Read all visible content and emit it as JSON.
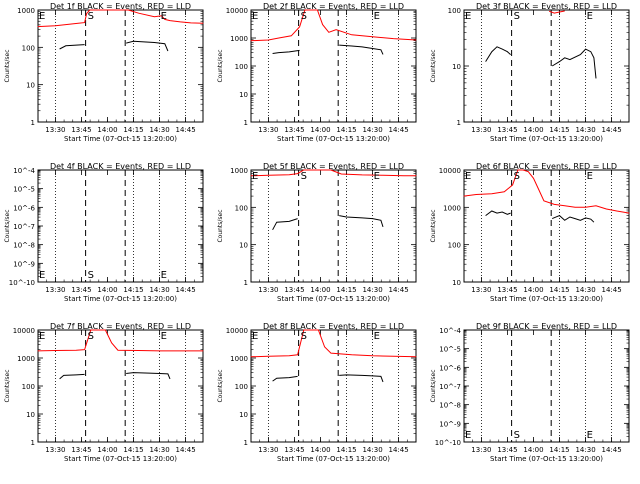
{
  "chart_data": [
    {
      "type": "line",
      "title": "Det 1f BLACK = Events, RED = LLD",
      "xlabel": "Start Time (07-Oct-15 13:20:00)",
      "ylabel": "Counts/sec",
      "yscale": "log",
      "ylim": [
        1,
        1000
      ],
      "ytick_labels": [
        "1",
        "10",
        "100",
        "1000"
      ],
      "xlim": [
        13.333,
        14.917
      ],
      "xtick_labels": [
        "13:30",
        "13:45",
        "14:00",
        "14:15",
        "14:30",
        "14:45"
      ],
      "markers": {
        "S_label": "S",
        "E_label": "E"
      },
      "series": [
        {
          "color": "#ff0000",
          "x": [
            13.33,
            13.5,
            13.72,
            13.78,
            13.8,
            13.83,
            13.9,
            14.0,
            14.1,
            14.2,
            14.3,
            14.45,
            14.52,
            14.55,
            14.6,
            14.7,
            14.8,
            14.92
          ],
          "y": [
            360,
            380,
            440,
            460,
            800,
            1000,
            1000,
            1000,
            1000,
            1000,
            820,
            660,
            700,
            560,
            520,
            480,
            450,
            440
          ]
        },
        {
          "color": "#000000",
          "x": [
            13.54,
            13.6,
            13.7,
            13.78,
            14.18,
            14.25,
            14.35,
            14.45,
            14.55,
            14.58
          ],
          "y": [
            90,
            110,
            115,
            118,
            130,
            145,
            140,
            135,
            125,
            80
          ]
        }
      ]
    },
    {
      "type": "line",
      "title": "Det 2f BLACK = Events, RED = LLD",
      "xlabel": "Start Time (07-Oct-15 13:20:00)",
      "ylabel": "Counts/sec",
      "yscale": "log",
      "ylim": [
        1,
        10000
      ],
      "ytick_labels": [
        "1",
        "10",
        "100",
        "1000",
        "10000"
      ],
      "xlim": [
        13.333,
        14.917
      ],
      "xtick_labels": [
        "13:30",
        "13:45",
        "14:00",
        "14:15",
        "14:30",
        "14:45"
      ],
      "markers": {
        "S_label": "S",
        "E_label": "E"
      },
      "series": [
        {
          "color": "#ff0000",
          "x": [
            13.33,
            13.5,
            13.6,
            13.72,
            13.8,
            13.85,
            13.9,
            13.97,
            14.02,
            14.08,
            14.15,
            14.3,
            14.5,
            14.7,
            14.92
          ],
          "y": [
            800,
            850,
            1000,
            1200,
            2500,
            10000,
            10000,
            10000,
            3000,
            1600,
            2000,
            1300,
            1100,
            950,
            850
          ]
        },
        {
          "color": "#000000",
          "x": [
            13.54,
            13.6,
            13.7,
            13.8,
            14.18,
            14.3,
            14.4,
            14.5,
            14.58,
            14.6
          ],
          "y": [
            280,
            300,
            320,
            360,
            560,
            520,
            480,
            420,
            380,
            260
          ]
        }
      ]
    },
    {
      "type": "line",
      "title": "Det 3f BLACK = Events, RED = LLD",
      "xlabel": "Start Time (07-Oct-15 13:20:00)",
      "ylabel": "Counts/sec",
      "yscale": "log",
      "ylim": [
        1,
        100
      ],
      "ytick_labels": [
        "1",
        "10",
        "100"
      ],
      "xlim": [
        13.333,
        14.917
      ],
      "xtick_labels": [
        "13:30",
        "13:45",
        "14:00",
        "14:15",
        "14:30",
        "14:45"
      ],
      "markers": {
        "S_label": "S",
        "E_label": "E"
      },
      "series": [
        {
          "color": "#ff0000",
          "x": [
            14.15,
            14.2,
            14.25,
            14.3
          ],
          "y": [
            95,
            88,
            92,
            96
          ]
        },
        {
          "color": "#000000",
          "x": [
            13.54,
            13.6,
            13.65,
            13.7,
            13.75,
            13.78,
            14.18,
            14.25,
            14.3,
            14.35,
            14.45,
            14.5,
            14.55,
            14.58,
            14.6
          ],
          "y": [
            12,
            18,
            22,
            20,
            18,
            16,
            10,
            12,
            14,
            13,
            16,
            20,
            18,
            14,
            6
          ]
        }
      ]
    },
    {
      "type": "line",
      "title": "Det 4f BLACK = Events, RED = LLD",
      "xlabel": "Start Time (07-Oct-15 13:20:00)",
      "ylabel": "Counts/sec",
      "yscale": "log",
      "ylim": [
        1e-10,
        0.0001
      ],
      "ytick_labels": [
        "10^-10",
        "10^-9",
        "10^-8",
        "10^-7",
        "10^-6",
        "10^-5",
        "10^-4"
      ],
      "xlim": [
        13.333,
        14.917
      ],
      "xtick_labels": [
        "13:30",
        "13:45",
        "14:00",
        "14:15",
        "14:30",
        "14:45"
      ],
      "markers": {
        "S_label": "S",
        "E_label": "E"
      },
      "series": []
    },
    {
      "type": "line",
      "title": "Det 5f BLACK = Events, RED = LLD",
      "xlabel": "Start Time (07-Oct-15 13:20:00)",
      "ylabel": "Counts/sec",
      "yscale": "log",
      "ylim": [
        1,
        1000
      ],
      "ytick_labels": [
        "1",
        "10",
        "100",
        "1000"
      ],
      "xlim": [
        13.333,
        14.917
      ],
      "xtick_labels": [
        "13:30",
        "13:45",
        "14:00",
        "14:15",
        "14:30",
        "14:45"
      ],
      "markers": {
        "S_label": "S",
        "E_label": "E"
      },
      "series": [
        {
          "color": "#ff0000",
          "x": [
            13.33,
            13.5,
            13.7,
            13.78,
            13.84,
            13.9,
            14.0,
            14.1,
            14.2,
            14.4,
            14.6,
            14.8,
            14.92
          ],
          "y": [
            700,
            720,
            750,
            800,
            1000,
            1000,
            1000,
            1000,
            780,
            740,
            720,
            700,
            700
          ]
        },
        {
          "color": "#000000",
          "x": [
            13.54,
            13.58,
            13.7,
            13.78,
            14.18,
            14.25,
            14.4,
            14.5,
            14.58,
            14.6
          ],
          "y": [
            25,
            40,
            42,
            50,
            60,
            55,
            52,
            50,
            45,
            30
          ]
        }
      ]
    },
    {
      "type": "line",
      "title": "Det 6f BLACK = Events, RED = LLD",
      "xlabel": "Start Time (07-Oct-15 13:20:00)",
      "ylabel": "Counts/sec",
      "yscale": "log",
      "ylim": [
        10,
        10000
      ],
      "ytick_labels": [
        "10",
        "100",
        "1000",
        "10000"
      ],
      "xlim": [
        13.333,
        14.917
      ],
      "xtick_labels": [
        "13:30",
        "13:45",
        "14:00",
        "14:15",
        "14:30",
        "14:45"
      ],
      "markers": {
        "S_label": "S",
        "E_label": "E"
      },
      "series": [
        {
          "color": "#ff0000",
          "x": [
            13.33,
            13.45,
            13.6,
            13.72,
            13.8,
            13.85,
            13.9,
            13.95,
            14.0,
            14.05,
            14.1,
            14.2,
            14.3,
            14.4,
            14.5,
            14.6,
            14.7,
            14.8,
            14.92
          ],
          "y": [
            2000,
            2200,
            2300,
            2600,
            4000,
            10000,
            10000,
            9000,
            6000,
            3000,
            1500,
            1200,
            1100,
            1000,
            1000,
            1100,
            900,
            800,
            700
          ]
        },
        {
          "color": "#000000",
          "x": [
            13.54,
            13.6,
            13.65,
            13.7,
            13.75,
            13.78,
            14.18,
            14.25,
            14.3,
            14.35,
            14.4,
            14.45,
            14.5,
            14.55,
            14.58
          ],
          "y": [
            600,
            800,
            700,
            750,
            650,
            700,
            500,
            600,
            450,
            550,
            500,
            450,
            520,
            480,
            400
          ]
        }
      ]
    },
    {
      "type": "line",
      "title": "Det 7f BLACK = Events, RED = LLD",
      "xlabel": "Start Time (07-Oct-15 13:20:00)",
      "ylabel": "Counts/sec",
      "yscale": "log",
      "ylim": [
        1,
        10000
      ],
      "ytick_labels": [
        "1",
        "10",
        "100",
        "1000",
        "10000"
      ],
      "xlim": [
        13.333,
        14.917
      ],
      "xtick_labels": [
        "13:30",
        "13:45",
        "14:00",
        "14:15",
        "14:30",
        "14:45"
      ],
      "markers": {
        "S_label": "S",
        "E_label": "E"
      },
      "series": [
        {
          "color": "#ff0000",
          "x": [
            13.33,
            13.5,
            13.7,
            13.78,
            13.84,
            13.9,
            13.98,
            14.04,
            14.1,
            14.3,
            14.5,
            14.7,
            14.92
          ],
          "y": [
            1800,
            1850,
            1900,
            2000,
            10000,
            10000,
            10000,
            3500,
            1900,
            1850,
            1800,
            1800,
            1800
          ]
        },
        {
          "color": "#000000",
          "x": [
            13.54,
            13.58,
            13.7,
            13.78,
            14.18,
            14.25,
            14.4,
            14.5,
            14.58,
            14.6
          ],
          "y": [
            180,
            240,
            250,
            260,
            280,
            300,
            290,
            280,
            270,
            180
          ]
        }
      ]
    },
    {
      "type": "line",
      "title": "Det 8f BLACK = Events, RED = LLD",
      "xlabel": "Start Time (07-Oct-15 13:20:00)",
      "ylabel": "Counts/sec",
      "yscale": "log",
      "ylim": [
        1,
        10000
      ],
      "ytick_labels": [
        "1",
        "10",
        "100",
        "1000",
        "10000"
      ],
      "xlim": [
        13.333,
        14.917
      ],
      "xtick_labels": [
        "13:30",
        "13:45",
        "14:00",
        "14:15",
        "14:30",
        "14:45"
      ],
      "markers": {
        "S_label": "S",
        "E_label": "E"
      },
      "series": [
        {
          "color": "#ff0000",
          "x": [
            13.33,
            13.5,
            13.7,
            13.78,
            13.84,
            13.9,
            13.98,
            14.04,
            14.1,
            14.3,
            14.5,
            14.7,
            14.92
          ],
          "y": [
            1100,
            1150,
            1200,
            1300,
            10000,
            10000,
            10000,
            2500,
            1500,
            1300,
            1200,
            1150,
            1100
          ]
        },
        {
          "color": "#000000",
          "x": [
            13.54,
            13.58,
            13.7,
            13.78,
            14.18,
            14.25,
            14.4,
            14.5,
            14.58,
            14.6
          ],
          "y": [
            150,
            190,
            200,
            220,
            240,
            250,
            240,
            230,
            220,
            140
          ]
        }
      ]
    },
    {
      "type": "line",
      "title": "Det 9f BLACK = Events, RED = LLD",
      "xlabel": "Start Time (07-Oct-15 13:20:00)",
      "ylabel": "Counts/sec",
      "yscale": "log",
      "ylim": [
        1e-10,
        0.0001
      ],
      "ytick_labels": [
        "10^-10",
        "10^-9",
        "10^-8",
        "10^-7",
        "10^-6",
        "10^-5",
        "10^-4"
      ],
      "xlim": [
        13.333,
        14.917
      ],
      "xtick_labels": [
        "13:30",
        "13:45",
        "14:00",
        "14:15",
        "14:30",
        "14:45"
      ],
      "markers": {
        "S_label": "S",
        "E_label": "E"
      },
      "series": []
    }
  ]
}
